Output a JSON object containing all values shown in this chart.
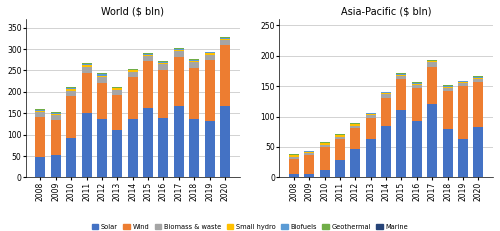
{
  "years": [
    2008,
    2009,
    2010,
    2011,
    2012,
    2013,
    2014,
    2015,
    2016,
    2017,
    2018,
    2019,
    2020
  ],
  "world": {
    "Solar": [
      47,
      52,
      91,
      150,
      136,
      111,
      136,
      162,
      140,
      167,
      136,
      131,
      167
    ],
    "Wind": [
      95,
      83,
      100,
      95,
      85,
      82,
      98,
      110,
      112,
      115,
      120,
      143,
      143
    ],
    "Biomass & waste": [
      10,
      10,
      12,
      14,
      13,
      12,
      13,
      12,
      12,
      13,
      13,
      13,
      11
    ],
    "Small hydro": [
      3,
      3,
      4,
      4,
      4,
      3,
      3,
      3,
      3,
      3,
      3,
      3,
      3
    ],
    "Biofuels": [
      2,
      2,
      3,
      3,
      3,
      2,
      2,
      2,
      2,
      2,
      2,
      2,
      2
    ],
    "Geothermal": [
      2,
      2,
      2,
      2,
      2,
      2,
      2,
      2,
      2,
      2,
      2,
      2,
      2
    ],
    "Marine": [
      0,
      0,
      0,
      0,
      0,
      0,
      0,
      0,
      0,
      0,
      0,
      0,
      0
    ]
  },
  "apac": {
    "Solar": [
      5,
      6,
      12,
      28,
      46,
      63,
      85,
      110,
      93,
      120,
      79,
      63,
      82
    ],
    "Wind": [
      25,
      30,
      38,
      35,
      35,
      35,
      46,
      52,
      54,
      62,
      63,
      87,
      75
    ],
    "Biomass & waste": [
      4,
      4,
      4,
      4,
      4,
      4,
      6,
      5,
      5,
      7,
      5,
      5,
      5
    ],
    "Small hydro": [
      2,
      2,
      2,
      2,
      2,
      2,
      2,
      2,
      2,
      2,
      2,
      2,
      2
    ],
    "Biofuels": [
      1,
      1,
      1,
      1,
      1,
      1,
      1,
      1,
      1,
      1,
      1,
      1,
      1
    ],
    "Geothermal": [
      1,
      1,
      1,
      1,
      1,
      1,
      1,
      1,
      1,
      1,
      1,
      1,
      1
    ],
    "Marine": [
      0,
      0,
      0,
      0,
      0,
      0,
      0,
      0,
      0,
      0,
      0,
      0,
      0
    ]
  },
  "colors": {
    "Solar": "#4472C4",
    "Wind": "#ED7D31",
    "Biomass & waste": "#A5A5A5",
    "Small hydro": "#FFC000",
    "Biofuels": "#5B9BD5",
    "Geothermal": "#70AD47",
    "Marine": "#264478"
  },
  "world_title": "World ($ bln)",
  "apac_title": "Asia-Pacific ($ bln)",
  "world_ylim": [
    0,
    370
  ],
  "apac_ylim": [
    0,
    260
  ],
  "world_yticks": [
    0,
    50,
    100,
    150,
    200,
    250,
    300,
    350
  ],
  "apac_yticks": [
    0,
    50,
    100,
    150,
    200,
    250
  ]
}
